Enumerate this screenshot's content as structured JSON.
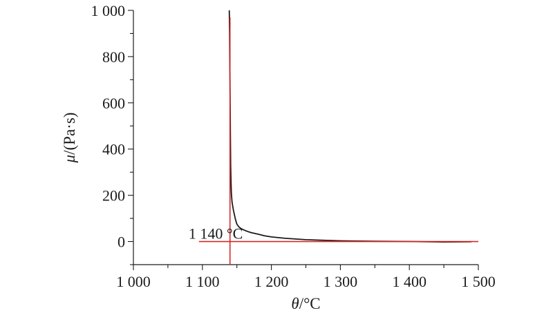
{
  "chart_data": {
    "type": "line",
    "title": "",
    "xlabel": "θ/°C",
    "ylabel": "μ/(Pa·s)",
    "xlim": [
      1000,
      1500
    ],
    "ylim": [
      -100,
      1000
    ],
    "xticks": [
      1000,
      1100,
      1200,
      1300,
      1400,
      1500
    ],
    "xtick_labels": [
      "1 000",
      "1 100",
      "1 200",
      "1 300",
      "1 400",
      "1 500"
    ],
    "yticks": [
      0,
      200,
      400,
      600,
      800,
      1000
    ],
    "ytick_labels": [
      "0",
      "200",
      "400",
      "600",
      "800",
      "1 000"
    ],
    "grid": false,
    "series": [
      {
        "color": "#1a1a1a",
        "x": [
          1139,
          1139.5,
          1140,
          1140.5,
          1141,
          1141.5,
          1142,
          1143,
          1145,
          1148,
          1150,
          1153,
          1156,
          1160,
          1165,
          1170,
          1180,
          1190,
          1200,
          1220,
          1250,
          1280,
          1300,
          1350,
          1400,
          1450,
          1490
        ],
        "y": [
          1000,
          900,
          700,
          500,
          330,
          260,
          210,
          170,
          135,
          95,
          75,
          63,
          56,
          50,
          44,
          39,
          32,
          25,
          20,
          14,
          8,
          5,
          3,
          1,
          0,
          -2,
          -1
        ]
      }
    ],
    "reference_lines": [
      {
        "orientation": "vertical",
        "x": 1140,
        "y_from": -100,
        "y_to": 970,
        "color": "#d62728"
      },
      {
        "orientation": "horizontal",
        "y": 0,
        "x_from": 1095,
        "x_to": 1500,
        "color": "#d62728"
      }
    ],
    "annotations": [
      {
        "text": "1 140 °C",
        "x": 1080,
        "y": 30
      }
    ]
  }
}
